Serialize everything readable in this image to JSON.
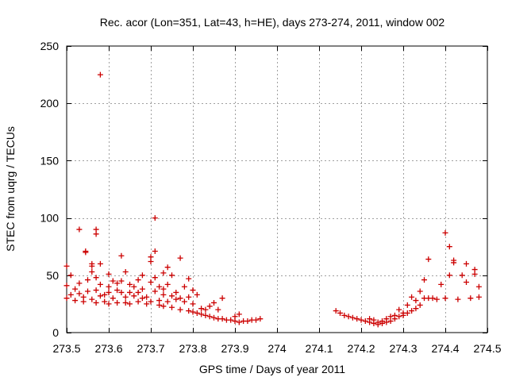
{
  "chart_data": {
    "type": "scatter",
    "title": "Rec. acor (Lon=351, Lat=43, h=HE), days 273-274, 2011, window 002",
    "xlabel": "GPS time / Days of year 2011",
    "ylabel": "STEC from uqrg / TECUs",
    "xlim": [
      273.5,
      274.5
    ],
    "ylim": [
      0,
      250
    ],
    "grid": true,
    "marker": "plus",
    "color": "#cc0000",
    "xticks": [
      273.5,
      273.6,
      273.7,
      273.8,
      273.9,
      274.0,
      274.1,
      274.2,
      274.3,
      274.4,
      274.5
    ],
    "xtick_labels": [
      "273.5",
      "273.6",
      "273.7",
      "273.8",
      "273.9",
      "274",
      "274.1",
      "274.2",
      "274.3",
      "274.4",
      "274.5"
    ],
    "yticks": [
      0,
      50,
      100,
      150,
      200,
      250
    ],
    "ytick_labels": [
      "0",
      "50",
      "100",
      "150",
      "200",
      "250"
    ],
    "series": [
      {
        "name": "STEC",
        "points": [
          [
            273.5,
            58
          ],
          [
            273.5,
            41
          ],
          [
            273.5,
            30
          ],
          [
            273.51,
            33
          ],
          [
            273.51,
            50
          ],
          [
            273.52,
            38
          ],
          [
            273.52,
            28
          ],
          [
            273.53,
            90
          ],
          [
            273.53,
            43
          ],
          [
            273.53,
            34
          ],
          [
            273.54,
            31
          ],
          [
            273.54,
            27
          ],
          [
            273.545,
            70
          ],
          [
            273.545,
            71
          ],
          [
            273.55,
            46
          ],
          [
            273.55,
            36
          ],
          [
            273.56,
            60
          ],
          [
            273.56,
            58
          ],
          [
            273.56,
            53
          ],
          [
            273.56,
            29
          ],
          [
            273.57,
            90
          ],
          [
            273.57,
            86
          ],
          [
            273.57,
            48
          ],
          [
            273.57,
            37
          ],
          [
            273.57,
            26
          ],
          [
            273.58,
            225
          ],
          [
            273.58,
            60
          ],
          [
            273.58,
            42
          ],
          [
            273.58,
            32
          ],
          [
            273.59,
            33
          ],
          [
            273.59,
            27
          ],
          [
            273.6,
            51
          ],
          [
            273.6,
            40
          ],
          [
            273.6,
            35
          ],
          [
            273.6,
            25
          ],
          [
            273.61,
            45
          ],
          [
            273.61,
            30
          ],
          [
            273.62,
            43
          ],
          [
            273.62,
            37
          ],
          [
            273.62,
            26
          ],
          [
            273.63,
            67
          ],
          [
            273.63,
            45
          ],
          [
            273.63,
            35
          ],
          [
            273.64,
            53
          ],
          [
            273.64,
            31
          ],
          [
            273.64,
            26
          ],
          [
            273.65,
            42
          ],
          [
            273.65,
            35
          ],
          [
            273.65,
            25
          ],
          [
            273.66,
            40
          ],
          [
            273.66,
            32
          ],
          [
            273.67,
            46
          ],
          [
            273.67,
            35
          ],
          [
            273.67,
            27
          ],
          [
            273.68,
            50
          ],
          [
            273.68,
            38
          ],
          [
            273.68,
            30
          ],
          [
            273.69,
            31
          ],
          [
            273.69,
            25
          ],
          [
            273.7,
            66
          ],
          [
            273.7,
            62
          ],
          [
            273.7,
            44
          ],
          [
            273.7,
            27
          ],
          [
            273.71,
            100
          ],
          [
            273.71,
            71
          ],
          [
            273.71,
            48
          ],
          [
            273.71,
            36
          ],
          [
            273.72,
            40
          ],
          [
            273.72,
            28
          ],
          [
            273.72,
            24
          ],
          [
            273.73,
            52
          ],
          [
            273.73,
            38
          ],
          [
            273.73,
            33
          ],
          [
            273.73,
            23
          ],
          [
            273.74,
            57
          ],
          [
            273.74,
            42
          ],
          [
            273.74,
            27
          ],
          [
            273.75,
            50
          ],
          [
            273.75,
            32
          ],
          [
            273.75,
            22
          ],
          [
            273.76,
            35
          ],
          [
            273.76,
            29
          ],
          [
            273.77,
            65
          ],
          [
            273.77,
            30
          ],
          [
            273.77,
            20
          ],
          [
            273.78,
            40
          ],
          [
            273.78,
            27
          ],
          [
            273.79,
            47
          ],
          [
            273.79,
            31
          ],
          [
            273.79,
            19
          ],
          [
            273.8,
            37
          ],
          [
            273.8,
            25
          ],
          [
            273.8,
            18
          ],
          [
            273.81,
            33
          ],
          [
            273.81,
            17
          ],
          [
            273.82,
            21
          ],
          [
            273.82,
            16
          ],
          [
            273.83,
            20
          ],
          [
            273.83,
            15
          ],
          [
            273.84,
            23
          ],
          [
            273.84,
            14
          ],
          [
            273.85,
            26
          ],
          [
            273.85,
            13
          ],
          [
            273.86,
            20
          ],
          [
            273.86,
            12
          ],
          [
            273.87,
            30
          ],
          [
            273.87,
            12
          ],
          [
            273.88,
            11
          ],
          [
            273.89,
            11
          ],
          [
            273.9,
            14
          ],
          [
            273.9,
            10
          ],
          [
            273.91,
            16
          ],
          [
            273.91,
            9
          ],
          [
            273.92,
            10
          ],
          [
            273.93,
            10
          ],
          [
            273.94,
            11
          ],
          [
            273.95,
            11
          ],
          [
            273.96,
            12
          ],
          [
            274.14,
            19
          ],
          [
            274.15,
            17
          ],
          [
            274.16,
            15
          ],
          [
            274.17,
            14
          ],
          [
            274.18,
            13
          ],
          [
            274.19,
            12
          ],
          [
            274.2,
            11
          ],
          [
            274.21,
            10
          ],
          [
            274.22,
            9
          ],
          [
            274.22,
            12
          ],
          [
            274.23,
            8
          ],
          [
            274.23,
            11
          ],
          [
            274.24,
            9
          ],
          [
            274.24,
            7
          ],
          [
            274.25,
            10
          ],
          [
            274.25,
            8
          ],
          [
            274.26,
            12
          ],
          [
            274.26,
            9
          ],
          [
            274.27,
            14
          ],
          [
            274.27,
            10
          ],
          [
            274.28,
            12
          ],
          [
            274.28,
            15
          ],
          [
            274.29,
            20
          ],
          [
            274.29,
            14
          ],
          [
            274.3,
            17
          ],
          [
            274.3,
            15
          ],
          [
            274.31,
            24
          ],
          [
            274.31,
            17
          ],
          [
            274.32,
            31
          ],
          [
            274.32,
            19
          ],
          [
            274.33,
            28
          ],
          [
            274.33,
            21
          ],
          [
            274.34,
            36
          ],
          [
            274.34,
            24
          ],
          [
            274.35,
            46
          ],
          [
            274.35,
            30
          ],
          [
            274.36,
            64
          ],
          [
            274.36,
            30
          ],
          [
            274.37,
            30
          ],
          [
            274.38,
            29
          ],
          [
            274.39,
            42
          ],
          [
            274.4,
            87
          ],
          [
            274.4,
            30
          ],
          [
            274.41,
            75
          ],
          [
            274.41,
            50
          ],
          [
            274.42,
            63
          ],
          [
            274.42,
            61
          ],
          [
            274.43,
            29
          ],
          [
            274.44,
            50
          ],
          [
            274.45,
            60
          ],
          [
            274.45,
            44
          ],
          [
            274.46,
            30
          ],
          [
            274.47,
            55
          ],
          [
            274.47,
            51
          ],
          [
            274.48,
            40
          ],
          [
            274.48,
            31
          ]
        ]
      }
    ]
  }
}
